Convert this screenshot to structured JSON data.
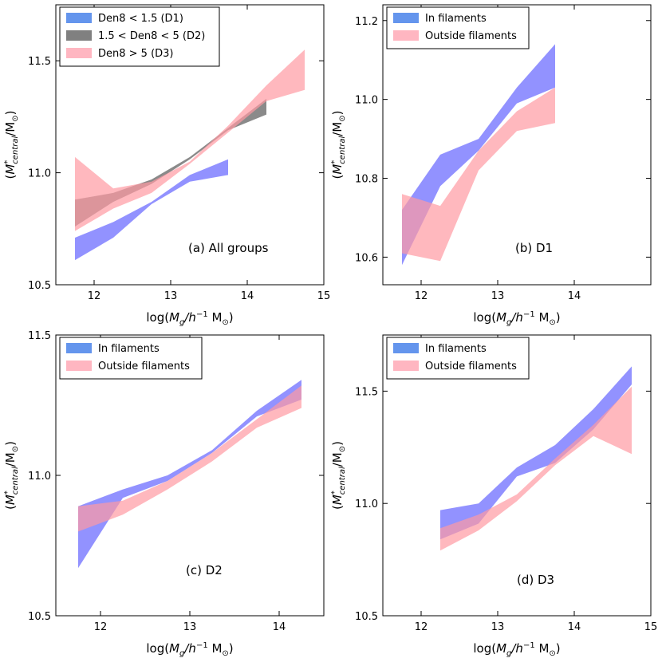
{
  "colors": {
    "in_filaments": "#6464ff",
    "in_legend": "#6495ed",
    "outside": "#ff9aa2",
    "outside_legend": "#ffb6c1",
    "d1": "#6464ff",
    "d1_legend": "#6495ed",
    "d2": "#595959",
    "d2_legend": "#808080",
    "d3": "#ff9aa2",
    "d3_legend": "#ffb6c1"
  },
  "chart_data": [
    {
      "type": "area",
      "annotation": "(a) All groups",
      "xlabel": "log(M_g/h^-1 M_⊙)",
      "ylabel": "(M*_central/M_⊙)",
      "xlim": [
        11.5,
        15.0
      ],
      "ylim": [
        10.5,
        11.75
      ],
      "xticks": [
        12,
        13,
        14,
        15
      ],
      "yticks": [
        10.5,
        11.0,
        11.5
      ],
      "ytick_labels": [
        "10.5",
        "11.0",
        "11.5"
      ],
      "legend_position": "top-left",
      "series": [
        {
          "name": "Den8 < 1.5 (D1)",
          "color_key": "d1",
          "legend_color_key": "d1_legend",
          "x": [
            11.75,
            12.25,
            12.75,
            13.25,
            13.75
          ],
          "lower": [
            10.61,
            10.71,
            10.86,
            10.96,
            10.99
          ],
          "upper": [
            10.71,
            10.78,
            10.87,
            10.99,
            11.06
          ]
        },
        {
          "name": "1.5 < Den8 < 5 (D2)",
          "color_key": "d2",
          "legend_color_key": "d2_legend",
          "x": [
            11.75,
            12.25,
            12.75,
            13.25,
            13.75,
            14.25
          ],
          "lower": [
            10.76,
            10.87,
            10.95,
            11.06,
            11.19,
            11.26
          ],
          "upper": [
            10.88,
            10.91,
            10.97,
            11.07,
            11.2,
            11.33
          ]
        },
        {
          "name": "Den8 > 5 (D3)",
          "color_key": "d3",
          "legend_color_key": "d3_legend",
          "x": [
            11.75,
            12.25,
            12.75,
            13.25,
            13.75,
            14.25,
            14.75
          ],
          "lower": [
            10.74,
            10.84,
            10.91,
            11.04,
            11.18,
            11.32,
            11.37
          ],
          "upper": [
            11.07,
            10.93,
            10.96,
            11.05,
            11.21,
            11.39,
            11.55
          ]
        }
      ]
    },
    {
      "type": "area",
      "annotation": "(b) D1",
      "xlabel": "log(M_g/h^-1 M_⊙)",
      "ylabel": "(M*_central/M_⊙)",
      "xlim": [
        11.5,
        15.0
      ],
      "ylim": [
        10.53,
        11.24
      ],
      "xticks": [
        12,
        13,
        14
      ],
      "yticks": [
        10.6,
        10.8,
        11.0,
        11.2
      ],
      "ytick_labels": [
        "10.6",
        "10.8",
        "11.0",
        "11.2"
      ],
      "legend_position": "top-left",
      "series": [
        {
          "name": "In filaments",
          "color_key": "in_filaments",
          "legend_color_key": "in_legend",
          "x": [
            11.75,
            12.25,
            12.75,
            13.25,
            13.75
          ],
          "lower": [
            10.58,
            10.78,
            10.87,
            10.99,
            11.03
          ],
          "upper": [
            10.72,
            10.86,
            10.9,
            11.03,
            11.14
          ]
        },
        {
          "name": "Outside filaments",
          "color_key": "outside",
          "legend_color_key": "outside_legend",
          "x": [
            11.75,
            12.25,
            12.75,
            13.25,
            13.75
          ],
          "lower": [
            10.61,
            10.59,
            10.82,
            10.92,
            10.94
          ],
          "upper": [
            10.76,
            10.73,
            10.87,
            10.97,
            11.03
          ]
        }
      ]
    },
    {
      "type": "area",
      "annotation": "(c) D2",
      "xlabel": "log(M_g/h^-1 M_⊙)",
      "ylabel": "(M*_central/M_⊙)",
      "xlim": [
        11.5,
        14.5
      ],
      "ylim": [
        10.5,
        11.5
      ],
      "xticks": [
        12,
        13,
        14
      ],
      "yticks": [
        10.5,
        11.0,
        11.5
      ],
      "ytick_labels": [
        "10.5",
        "11.0",
        "11.5"
      ],
      "legend_position": "top-left",
      "series": [
        {
          "name": "In filaments",
          "color_key": "in_filaments",
          "legend_color_key": "in_legend",
          "x": [
            11.75,
            12.25,
            12.75,
            13.25,
            13.75,
            14.25
          ],
          "lower": [
            10.67,
            10.92,
            10.98,
            11.08,
            11.21,
            11.27
          ],
          "upper": [
            10.89,
            10.95,
            11.0,
            11.09,
            11.23,
            11.34
          ]
        },
        {
          "name": "Outside filaments",
          "color_key": "outside",
          "legend_color_key": "outside_legend",
          "x": [
            11.75,
            12.25,
            12.75,
            13.25,
            13.75,
            14.25
          ],
          "lower": [
            10.8,
            10.86,
            10.95,
            11.05,
            11.17,
            11.24
          ]
        }
      ]
    },
    {
      "type": "area",
      "annotation": "(d) D3",
      "xlabel": "log(M_g/h^-1 M_⊙)",
      "ylabel": "(M*_central/M_⊙)",
      "xlim": [
        11.5,
        15.0
      ],
      "ylim": [
        10.5,
        11.75
      ],
      "xticks": [
        12,
        13,
        14,
        15
      ],
      "yticks": [
        10.5,
        11.0,
        11.5
      ],
      "ytick_labels": [
        "10.5",
        "11.0",
        "11.5"
      ],
      "legend_position": "top-left",
      "series": [
        {
          "name": "In filaments",
          "color_key": "in_filaments",
          "legend_color_key": "in_legend",
          "x": [
            12.25,
            12.75,
            13.25,
            13.75,
            14.25,
            14.75
          ],
          "lower": [
            10.84,
            10.91,
            11.12,
            11.18,
            11.33,
            11.53
          ],
          "upper": [
            10.97,
            11.0,
            11.16,
            11.26,
            11.42,
            11.61
          ]
        },
        {
          "name": "Outside filaments",
          "color_key": "outside",
          "legend_color_key": "outside_legend",
          "x": [
            12.25,
            12.75,
            13.25,
            13.75,
            14.25,
            14.75
          ],
          "lower": [
            10.79,
            10.88,
            11.01,
            11.17,
            11.3,
            11.22
          ],
          "upper": [
            10.89,
            10.95,
            11.04,
            11.2,
            11.35,
            11.52
          ]
        }
      ]
    }
  ]
}
